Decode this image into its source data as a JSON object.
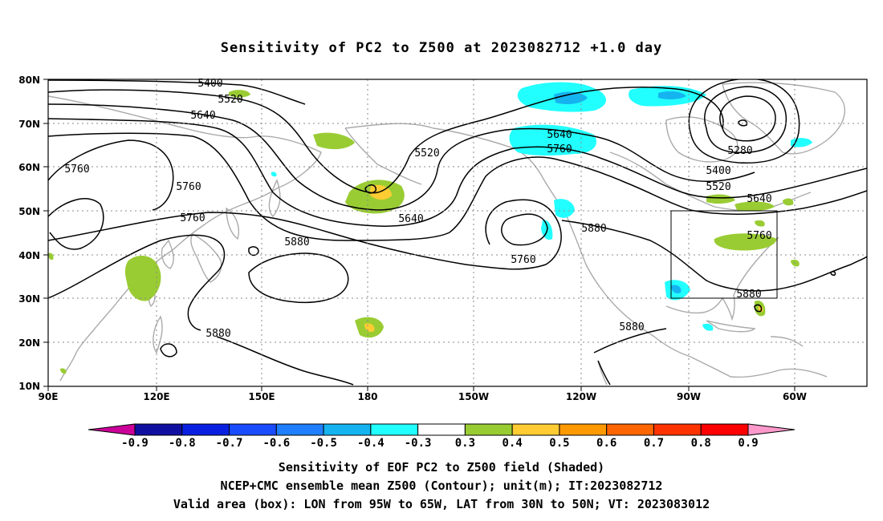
{
  "title": "Sensitivity of PC2 to Z500 at 2023082712 +1.0 day",
  "map": {
    "lon_labels": [
      "90E",
      "120E",
      "150E",
      "180",
      "150W",
      "120W",
      "90W",
      "60W"
    ],
    "lat_labels": [
      "80N",
      "70N",
      "60N",
      "50N",
      "40N",
      "30N",
      "20N",
      "10N"
    ],
    "contour_labels": [
      "5400",
      "5520",
      "5640",
      "5520",
      "5760",
      "5760",
      "5760",
      "5640",
      "5640",
      "5760",
      "5880",
      "5880",
      "5880",
      "5760",
      "5880",
      "5280",
      "5400",
      "5520",
      "5640",
      "5760",
      "5880"
    ],
    "box": {
      "lon_min": "95W",
      "lon_max": "65W",
      "lat_min": "30N",
      "lat_max": "50N"
    }
  },
  "colorbar": {
    "labels": [
      "-0.9",
      "-0.8",
      "-0.7",
      "-0.6",
      "-0.5",
      "-0.4",
      "-0.3",
      "0.3",
      "0.4",
      "0.5",
      "0.6",
      "0.7",
      "0.8",
      "0.9"
    ],
    "colors": [
      "#1010a0",
      "#0a20e0",
      "#1a4cff",
      "#1f7fff",
      "#15b4f0",
      "#22ffff",
      "#ffffff",
      "#99cc33",
      "#ffcc33",
      "#ff9900",
      "#ff6600",
      "#ff3300",
      "#ff0000"
    ],
    "low_end_color": "#cc0099",
    "high_end_color": "#ff99cc"
  },
  "captions": [
    "Sensitivity of EOF PC2 to Z500 field (Shaded)",
    "NCEP+CMC ensemble mean Z500 (Contour); unit(m); IT:2023082712",
    "Valid area (box): LON from 95W to 65W, LAT from 30N to 50N; VT: 2023083012"
  ]
}
